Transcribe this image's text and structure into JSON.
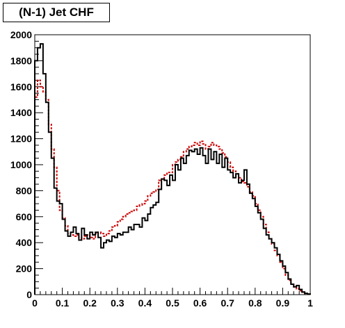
{
  "chart_data": {
    "type": "line",
    "title": "(N-1) Jet CHF",
    "xlabel": "",
    "ylabel": "",
    "xlim": [
      0,
      1
    ],
    "ylim": [
      0,
      2000
    ],
    "x_ticks": [
      "0",
      "0.1",
      "0.2",
      "0.3",
      "0.4",
      "0.5",
      "0.6",
      "0.7",
      "0.8",
      "0.9",
      "1"
    ],
    "y_ticks": [
      "0",
      "200",
      "400",
      "600",
      "800",
      "1000",
      "1200",
      "1400",
      "1600",
      "1800",
      "2000"
    ],
    "grid": false,
    "legend": "none",
    "bin_width": 0.01,
    "series": [
      {
        "color": "#000000",
        "style": "solid-step",
        "values": [
          1800,
          1900,
          1930,
          1700,
          1480,
          1250,
          1050,
          820,
          720,
          700,
          580,
          490,
          450,
          480,
          520,
          470,
          420,
          510,
          460,
          430,
          480,
          460,
          480,
          440,
          360,
          400,
          420,
          410,
          450,
          440,
          470,
          460,
          480,
          480,
          520,
          500,
          540,
          540,
          520,
          590,
          570,
          620,
          670,
          690,
          710,
          810,
          890,
          880,
          840,
          920,
          880,
          1000,
          960,
          1050,
          1010,
          1070,
          1110,
          1100,
          1120,
          1080,
          1130,
          1070,
          1010,
          1120,
          1040,
          1100,
          1010,
          1080,
          980,
          1050,
          960,
          940,
          900,
          930,
          860,
          880,
          960,
          850,
          780,
          740,
          680,
          630,
          580,
          510,
          460,
          430,
          400,
          360,
          310,
          260,
          220,
          170,
          120,
          80,
          60,
          70,
          40,
          20,
          10,
          5
        ]
      },
      {
        "color": "#cc0000",
        "style": "dashed-step",
        "values": [
          1520,
          1650,
          1600,
          1560,
          1500,
          1310,
          1120,
          980,
          800,
          650,
          590,
          530,
          470,
          460,
          450,
          460,
          440,
          430,
          450,
          460,
          440,
          430,
          470,
          480,
          470,
          450,
          470,
          490,
          520,
          530,
          560,
          580,
          600,
          620,
          630,
          640,
          650,
          680,
          690,
          700,
          720,
          760,
          780,
          790,
          810,
          880,
          890,
          920,
          940,
          940,
          1000,
          1020,
          1040,
          1060,
          1100,
          1120,
          1140,
          1150,
          1170,
          1150,
          1180,
          1160,
          1120,
          1140,
          1170,
          1150,
          1140,
          1120,
          1090,
          1060,
          1020,
          980,
          950,
          920,
          900,
          870,
          860,
          830,
          790,
          760,
          700,
          650,
          600,
          540,
          480,
          430,
          390,
          340,
          300,
          250,
          200,
          150,
          110,
          80,
          60,
          45,
          30,
          20,
          10,
          5
        ]
      }
    ]
  }
}
